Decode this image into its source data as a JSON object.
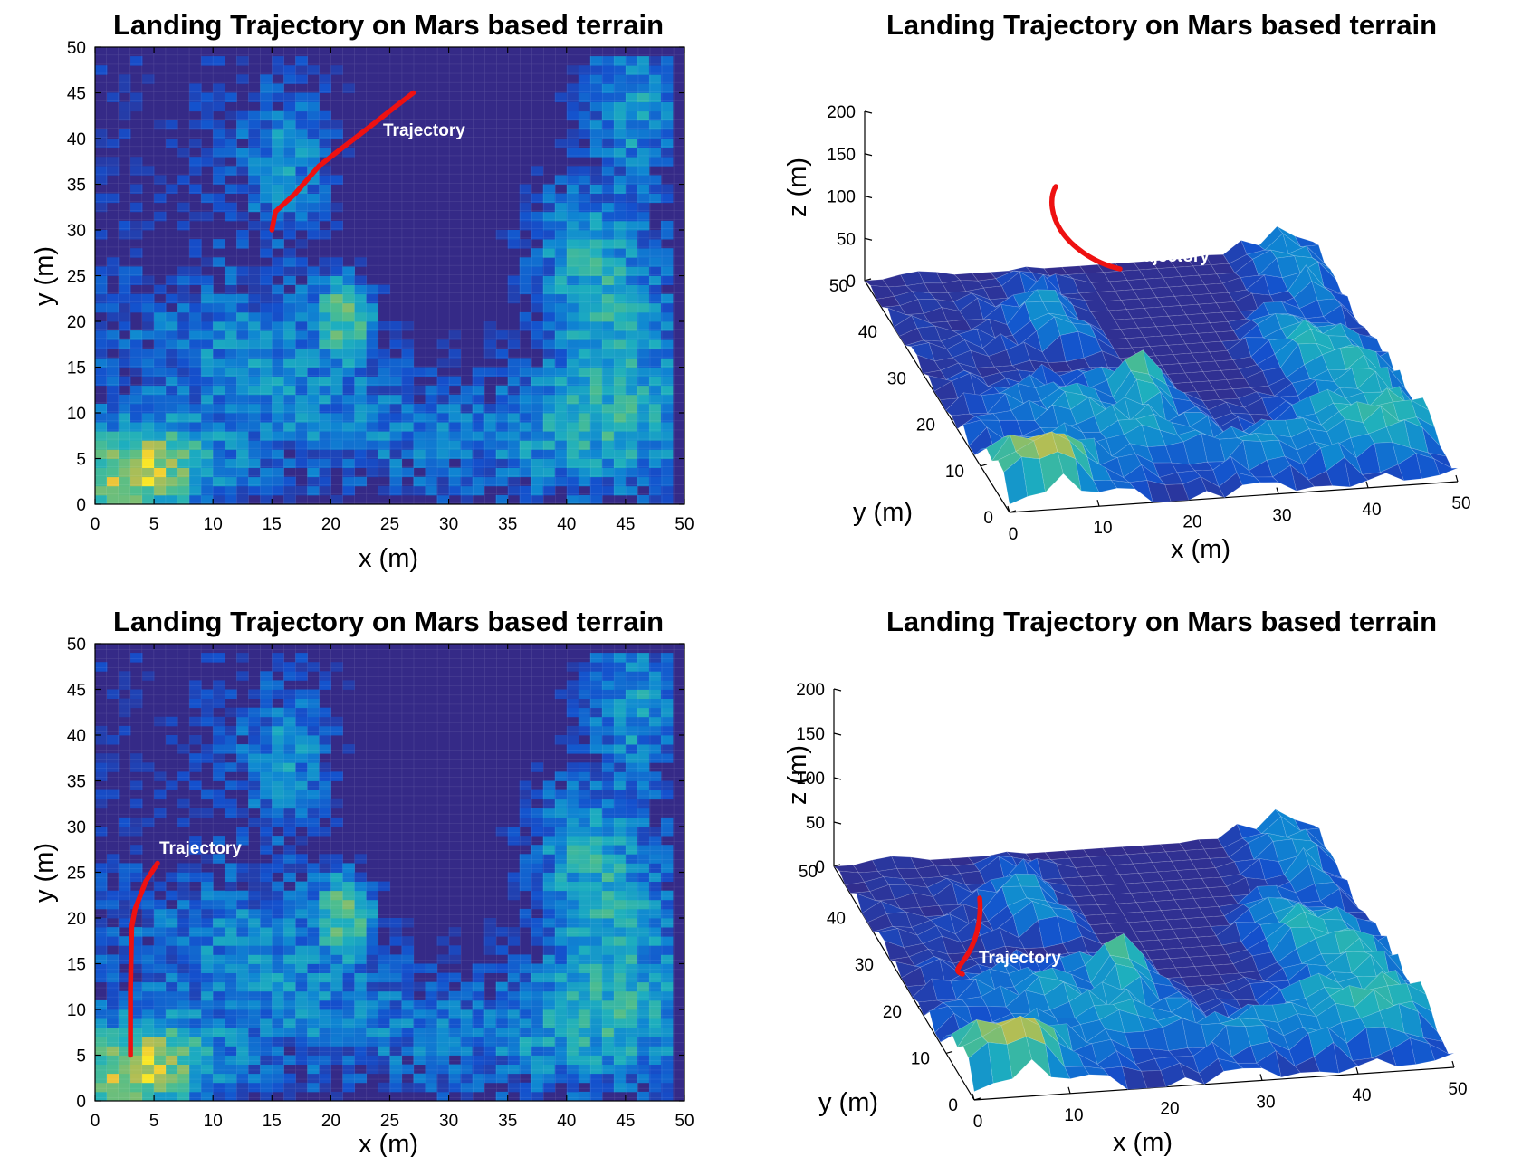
{
  "chart_data": [
    {
      "id": "top-left",
      "type": "heatmap",
      "view": "2d",
      "title": "Landing Trajectory on Mars based terrain",
      "xlabel": "x (m)",
      "ylabel": "y (m)",
      "xlim": [
        0,
        50
      ],
      "ylim": [
        0,
        50
      ],
      "xticks": [
        "0",
        "5",
        "10",
        "15",
        "20",
        "25",
        "30",
        "35",
        "40",
        "45",
        "50"
      ],
      "yticks": [
        "0",
        "5",
        "10",
        "15",
        "20",
        "25",
        "30",
        "35",
        "40",
        "45",
        "50"
      ],
      "annotation": "Trajectory",
      "trajectory": {
        "x": [
          15,
          15.3,
          17,
          19,
          21,
          23.5,
          25.5,
          27
        ],
        "y": [
          30,
          32,
          34,
          37,
          39,
          41.5,
          43.5,
          45
        ]
      }
    },
    {
      "id": "top-right",
      "type": "surface",
      "view": "3d",
      "title": "Landing Trajectory on Mars based terrain",
      "xlabel": "x (m)",
      "ylabel": "y (m)",
      "zlabel": "z (m)",
      "xlim": [
        0,
        50
      ],
      "ylim": [
        0,
        50
      ],
      "zlim": [
        0,
        200
      ],
      "xticks": [
        "0",
        "10",
        "20",
        "30",
        "40",
        "50"
      ],
      "yticks": [
        "0",
        "10",
        "20",
        "30",
        "40",
        "50"
      ],
      "zticks": [
        "0",
        "50",
        "100",
        "150",
        "200"
      ],
      "annotation": "Trajectory"
    },
    {
      "id": "bottom-left",
      "type": "heatmap",
      "view": "2d",
      "title": "Landing Trajectory on Mars based terrain",
      "xlabel": "x (m)",
      "ylabel": "y (m)",
      "xlim": [
        0,
        50
      ],
      "ylim": [
        0,
        50
      ],
      "xticks": [
        "0",
        "5",
        "10",
        "15",
        "20",
        "25",
        "30",
        "35",
        "40",
        "45",
        "50"
      ],
      "yticks": [
        "0",
        "5",
        "10",
        "15",
        "20",
        "25",
        "30",
        "35",
        "40",
        "45",
        "50"
      ],
      "annotation": "Trajectory",
      "trajectory": {
        "x": [
          3,
          3,
          3.1,
          3.4,
          4.3,
          5.3
        ],
        "y": [
          5,
          12,
          19,
          21,
          24,
          26
        ]
      }
    },
    {
      "id": "bottom-right",
      "type": "surface",
      "view": "3d",
      "title": "Landing Trajectory on Mars based terrain",
      "xlabel": "x (m)",
      "ylabel": "y (m)",
      "zlabel": "z (m)",
      "xlim": [
        0,
        50
      ],
      "ylim": [
        0,
        50
      ],
      "zlim": [
        0,
        200
      ],
      "xticks": [
        "0",
        "10",
        "20",
        "30",
        "40",
        "50"
      ],
      "yticks": [
        "0",
        "10",
        "20",
        "30",
        "40",
        "50"
      ],
      "zticks": [
        "0",
        "50",
        "100",
        "150",
        "200"
      ],
      "annotation": "Trajectory"
    }
  ],
  "colors": {
    "low": "#352a87",
    "mid": "#0f86d3",
    "teal": "#33b7a0",
    "green": "#7cbf7b",
    "high": "#f9d14a",
    "trajectory": "#ee1111"
  }
}
